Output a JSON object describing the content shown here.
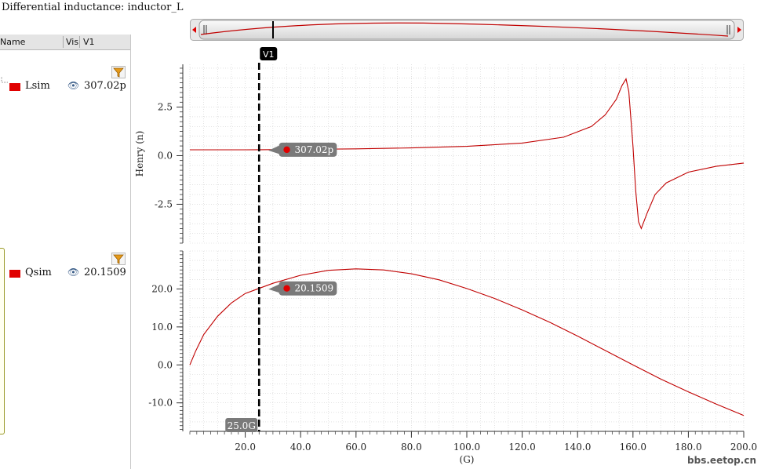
{
  "window_title": "Differential inductance: inductor_L",
  "legend_header": {
    "name": "Name",
    "vis": "Vis",
    "v1": "V1"
  },
  "legend_rows": [
    {
      "name": "Lsim",
      "value": "307.02p",
      "color": "#e00000",
      "icon": "eye-icon"
    },
    {
      "name": "Qsim",
      "value": "20.1509",
      "color": "#e00000",
      "icon": "eye-icon"
    }
  ],
  "cursor": {
    "label": "V1",
    "x_value": 25.0,
    "x_label": "25.0G"
  },
  "watermark": "bbs.eetop.cn",
  "chart_data": [
    {
      "type": "line",
      "ylabel": "Henry (n)",
      "ylim": [
        -4.5,
        4.7
      ],
      "yticks": [
        2.5,
        0.0,
        -2.5
      ],
      "ytick_labels": [
        "2.5",
        "0.0",
        "-2.5"
      ],
      "grid": true,
      "marker": {
        "x": 35,
        "y": 0.307,
        "label": "307.02p"
      },
      "series": [
        {
          "name": "Lsim",
          "color": "#c00000",
          "x": [
            0,
            10,
            20,
            25,
            40,
            60,
            80,
            100,
            120,
            135,
            145,
            150,
            154,
            156,
            157.5,
            158.5,
            160,
            161,
            162,
            163,
            165,
            168,
            172,
            180,
            190,
            200
          ],
          "y": [
            0.3,
            0.3,
            0.3,
            0.307,
            0.32,
            0.35,
            0.4,
            0.48,
            0.65,
            0.95,
            1.5,
            2.1,
            2.9,
            3.6,
            3.95,
            3.3,
            0.5,
            -1.8,
            -3.4,
            -3.75,
            -3.0,
            -2.0,
            -1.4,
            -0.85,
            -0.55,
            -0.38
          ]
        }
      ]
    },
    {
      "type": "line",
      "xlabel": "(G)",
      "xlim": [
        0,
        200
      ],
      "xticks": [
        20,
        40,
        60,
        80,
        100,
        120,
        140,
        160,
        180,
        200
      ],
      "xtick_labels": [
        "20.0",
        "40.0",
        "60.0",
        "80.0",
        "100.0",
        "120.0",
        "140.0",
        "160.0",
        "180.0",
        "200.0"
      ],
      "ylim": [
        -17.5,
        30
      ],
      "yticks": [
        20,
        10,
        0,
        -10
      ],
      "ytick_labels": [
        "20.0",
        "10.0",
        "0.0",
        "-10.0"
      ],
      "grid": true,
      "marker": {
        "x": 35,
        "y": 20.15,
        "label": "20.1509"
      },
      "series": [
        {
          "name": "Qsim",
          "color": "#c00000",
          "x": [
            0,
            2,
            5,
            10,
            15,
            20,
            25,
            30,
            40,
            50,
            60,
            70,
            80,
            90,
            100,
            110,
            120,
            130,
            140,
            150,
            160,
            170,
            180,
            190,
            200
          ],
          "y": [
            0.0,
            3.5,
            8.0,
            12.8,
            16.3,
            18.8,
            20.15,
            21.5,
            23.6,
            24.9,
            25.3,
            25.0,
            24.0,
            22.4,
            20.1,
            17.5,
            14.5,
            11.2,
            7.6,
            3.8,
            0.0,
            -3.7,
            -7.1,
            -10.3,
            -13.3
          ]
        }
      ]
    }
  ]
}
